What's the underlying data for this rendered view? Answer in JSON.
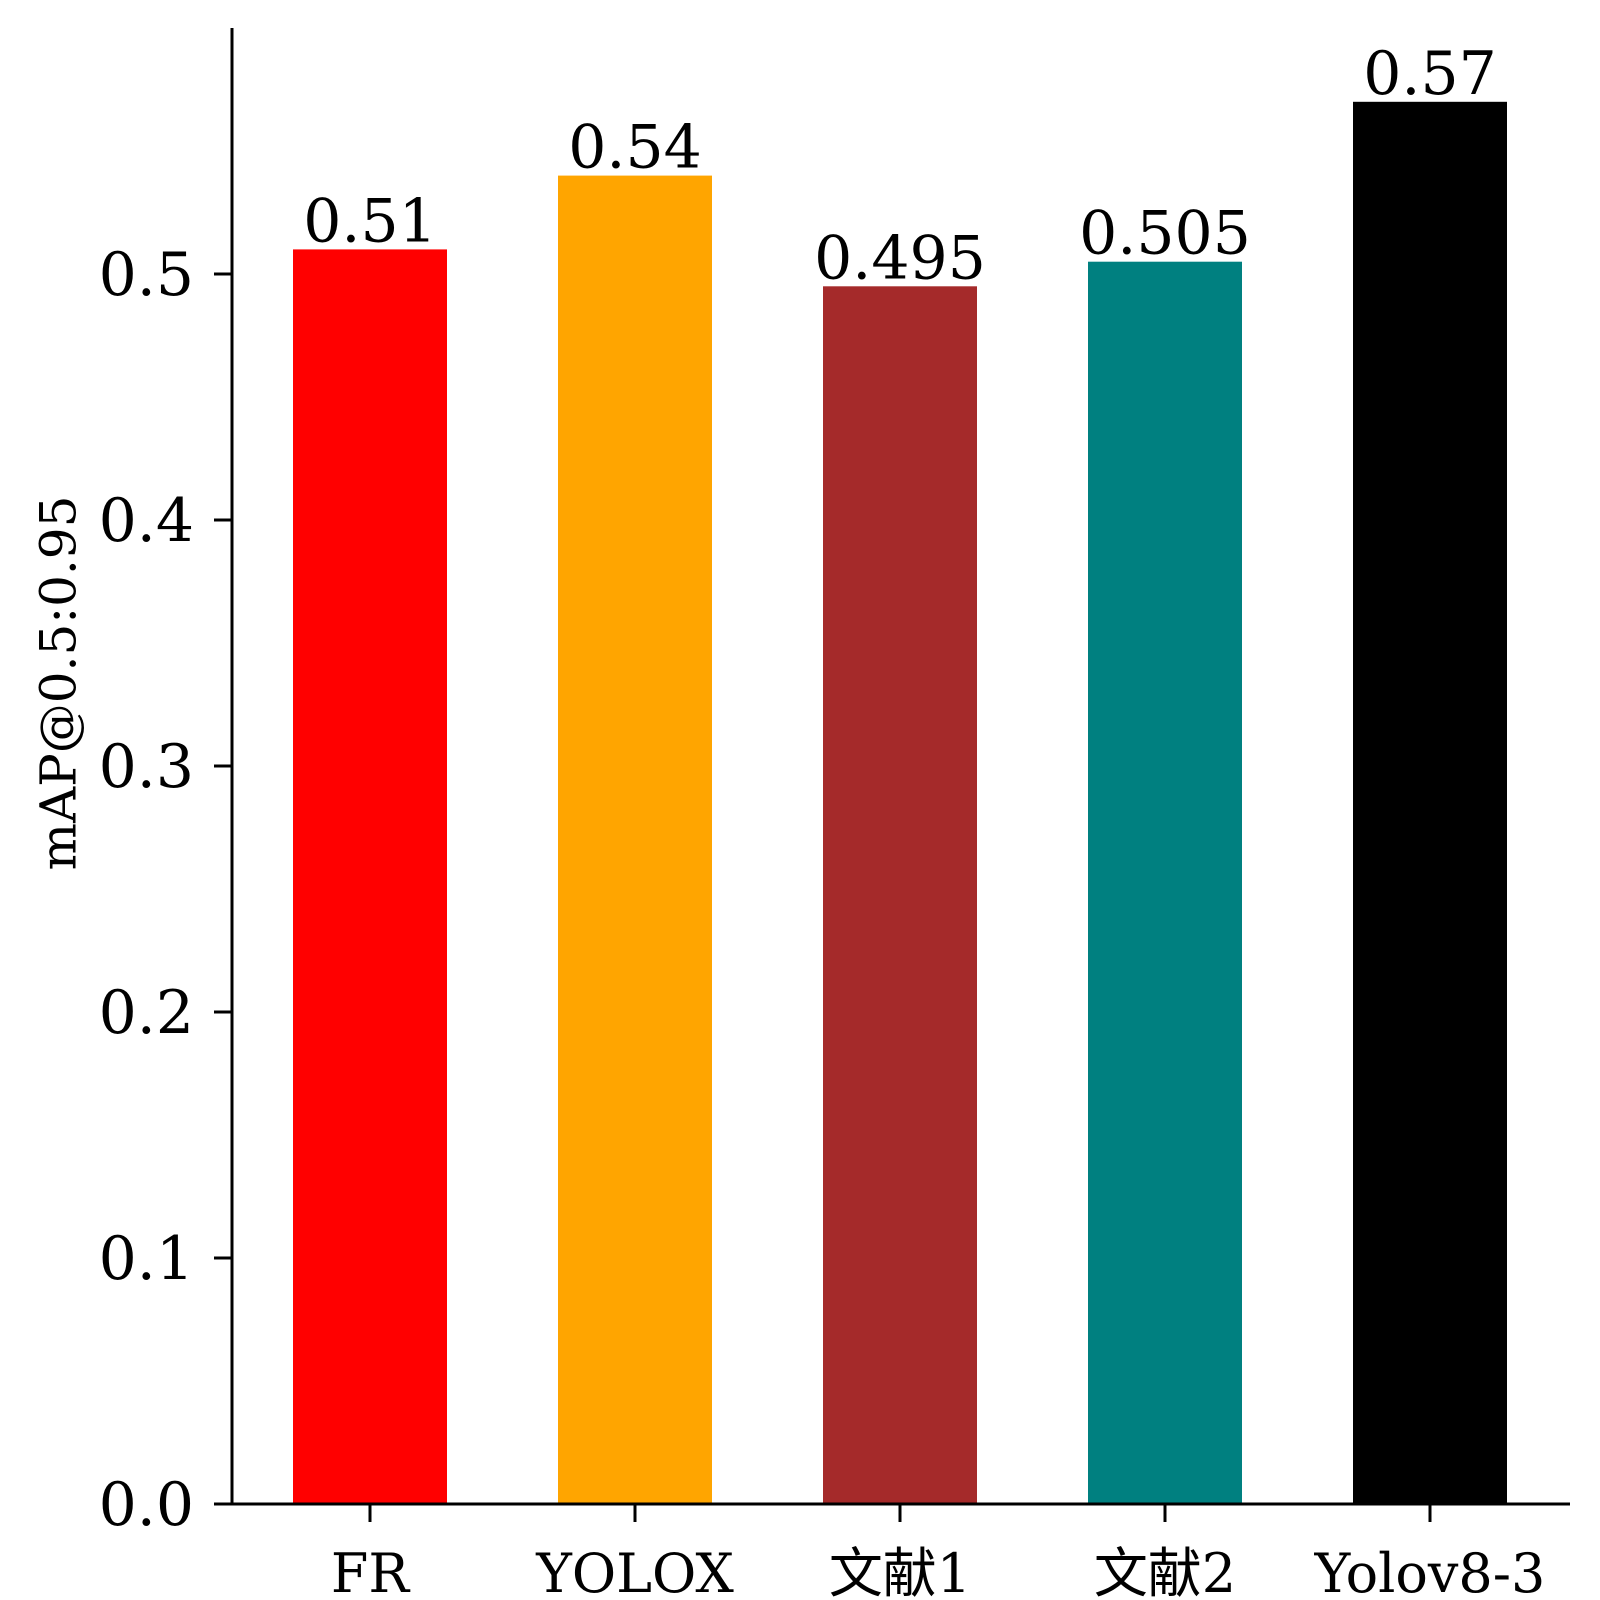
{
  "chart_data": {
    "type": "bar",
    "categories": [
      "FR",
      "YOLOX",
      "文献1",
      "文献2",
      "Yolov8-3"
    ],
    "values": [
      0.51,
      0.54,
      0.495,
      0.505,
      0.57
    ],
    "value_labels": [
      "0.51",
      "0.54",
      "0.495",
      "0.505",
      "0.57"
    ],
    "colors": [
      "#ff0000",
      "#ffa500",
      "#a52a2a",
      "#008080",
      "#000000"
    ],
    "title": "",
    "xlabel": "",
    "ylabel": "mAP@0.5:0.95",
    "ylim": [
      0,
      0.6
    ],
    "yticks": [
      0.0,
      0.1,
      0.2,
      0.3,
      0.4,
      0.5
    ],
    "ytick_labels": [
      "0.0",
      "0.1",
      "0.2",
      "0.3",
      "0.4",
      "0.5"
    ],
    "grid": false,
    "legend": "none"
  }
}
